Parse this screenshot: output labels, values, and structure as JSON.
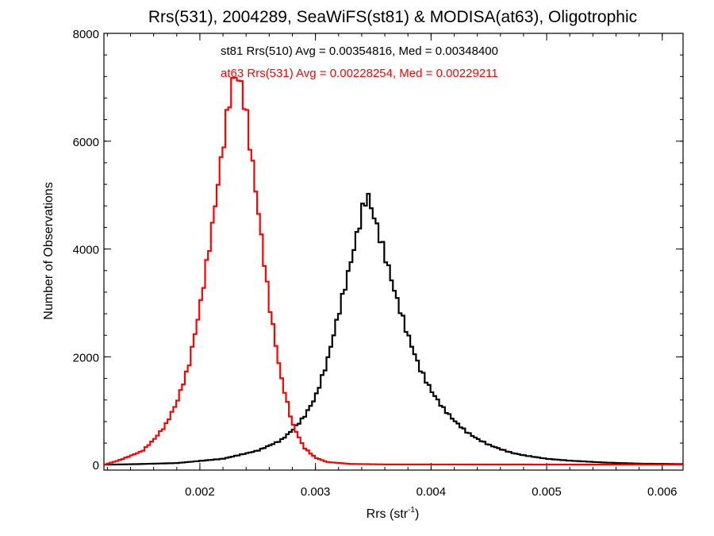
{
  "chart_data": {
    "type": "histogram",
    "title": "Rrs(531), 2004289, SeaWiFS(st81) & MODISA(at63), Oligotrophic",
    "xlabel_main": "Rrs (str",
    "xlabel_sup": "-1",
    "xlabel_close": ")",
    "ylabel": "Number of Observations",
    "xlim": [
      0.00117,
      0.00618
    ],
    "ylim": [
      -100,
      8000
    ],
    "x_ticks": [
      0.002,
      0.003,
      0.004,
      0.005,
      0.006
    ],
    "x_tick_labels": [
      "0.002",
      "0.003",
      "0.004",
      "0.005",
      "0.006"
    ],
    "y_ticks": [
      0,
      2000,
      4000,
      6000,
      8000
    ],
    "y_tick_labels": [
      "0",
      "2000",
      "4000",
      "6000",
      "8000"
    ],
    "x_minor_step": 0.0002,
    "y_minor_step": 400,
    "series": [
      {
        "id": "st81",
        "color": "#000000",
        "stat_text": "st81 Rrs(510) Avg = 0.00354816, Med = 0.00348400",
        "bin_width": 2.5e-05,
        "curve_points": [
          [
            0.00117,
            0
          ],
          [
            0.0014,
            8
          ],
          [
            0.0018,
            30
          ],
          [
            0.0022,
            110
          ],
          [
            0.0025,
            260
          ],
          [
            0.0027,
            450
          ],
          [
            0.0028,
            640
          ],
          [
            0.0029,
            880
          ],
          [
            0.003,
            1250
          ],
          [
            0.0031,
            1900
          ],
          [
            0.0032,
            2800
          ],
          [
            0.0033,
            3700
          ],
          [
            0.0034,
            4650
          ],
          [
            0.00342,
            4850
          ],
          [
            0.00345,
            5000
          ],
          [
            0.00348,
            4800
          ],
          [
            0.0035,
            4650
          ],
          [
            0.0036,
            3900
          ],
          [
            0.0037,
            3100
          ],
          [
            0.0038,
            2400
          ],
          [
            0.0039,
            1800
          ],
          [
            0.004,
            1380
          ],
          [
            0.0041,
            1060
          ],
          [
            0.0042,
            820
          ],
          [
            0.0043,
            620
          ],
          [
            0.0044,
            480
          ],
          [
            0.0045,
            370
          ],
          [
            0.0046,
            290
          ],
          [
            0.0047,
            220
          ],
          [
            0.0048,
            175
          ],
          [
            0.005,
            110
          ],
          [
            0.0052,
            75
          ],
          [
            0.0055,
            40
          ],
          [
            0.0058,
            20
          ],
          [
            0.00618,
            10
          ]
        ]
      },
      {
        "id": "at63",
        "color": "#ff0000",
        "stat_text": "at63 Rrs(531) Avg = 0.00228254, Med = 0.00229211",
        "bin_width": 2.5e-05,
        "curve_points": [
          [
            0.00117,
            0
          ],
          [
            0.0013,
            80
          ],
          [
            0.0015,
            250
          ],
          [
            0.0016,
            460
          ],
          [
            0.0017,
            720
          ],
          [
            0.0018,
            1150
          ],
          [
            0.0019,
            1800
          ],
          [
            0.002,
            2900
          ],
          [
            0.0021,
            4300
          ],
          [
            0.0022,
            5900
          ],
          [
            0.00225,
            6700
          ],
          [
            0.0023,
            7250
          ],
          [
            0.00235,
            7100
          ],
          [
            0.0024,
            6550
          ],
          [
            0.0025,
            4800
          ],
          [
            0.0026,
            3000
          ],
          [
            0.0027,
            1650
          ],
          [
            0.0028,
            760
          ],
          [
            0.0029,
            320
          ],
          [
            0.003,
            130
          ],
          [
            0.0031,
            50
          ],
          [
            0.0033,
            15
          ],
          [
            0.0036,
            5
          ],
          [
            0.00618,
            0
          ]
        ]
      }
    ]
  }
}
